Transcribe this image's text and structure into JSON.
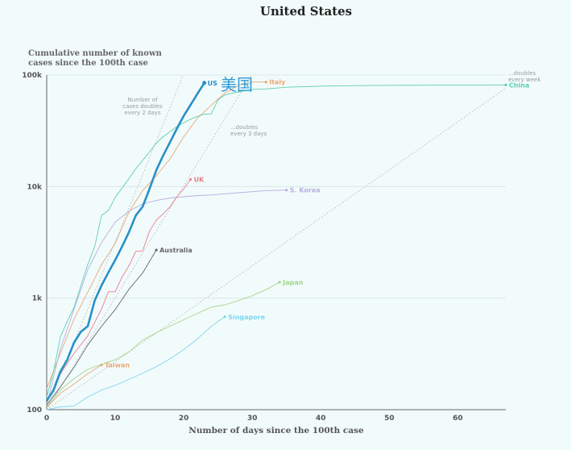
{
  "chart_data": {
    "type": "line",
    "title": "United States",
    "ylabel_line1": "Cumulative number of known",
    "ylabel_line2": "cases since the 100th case",
    "xlabel": "Number of days since the 100th case",
    "x_ticks": [
      0,
      10,
      20,
      30,
      40,
      50,
      60
    ],
    "y_ticks": [
      {
        "value": 100,
        "label": "100"
      },
      {
        "value": 1000,
        "label": "1k"
      },
      {
        "value": 10000,
        "label": "10k"
      },
      {
        "value": 100000,
        "label": "100k"
      }
    ],
    "xlim": [
      0,
      67
    ],
    "ylim": [
      100,
      100000
    ],
    "y_scale": "log",
    "grid": true,
    "reference_lines": [
      {
        "label_lines": [
          "Number of",
          "cases doubles",
          "every 2 days"
        ],
        "doubling_days": 2
      },
      {
        "label_lines": [
          "...doubles",
          "every 3 days"
        ],
        "doubling_days": 3
      },
      {
        "label_lines": [
          "...doubles",
          "every week"
        ],
        "doubling_days": 7
      }
    ],
    "series": [
      {
        "name": "US",
        "color": "#2a8fc7",
        "highlight": true,
        "points": [
          [
            0,
            120
          ],
          [
            1,
            150
          ],
          [
            2,
            220
          ],
          [
            3,
            280
          ],
          [
            4,
            400
          ],
          [
            5,
            500
          ],
          [
            6,
            560
          ],
          [
            7,
            950
          ],
          [
            8,
            1300
          ],
          [
            9,
            1700
          ],
          [
            10,
            2200
          ],
          [
            11,
            2900
          ],
          [
            12,
            3900
          ],
          [
            13,
            5500
          ],
          [
            14,
            6600
          ],
          [
            15,
            9500
          ],
          [
            16,
            14000
          ],
          [
            17,
            19000
          ],
          [
            18,
            25000
          ],
          [
            19,
            33000
          ],
          [
            20,
            43000
          ],
          [
            21,
            54000
          ],
          [
            22,
            68000
          ],
          [
            23,
            85000
          ]
        ]
      },
      {
        "name": "Italy",
        "color": "#e8a878",
        "points": [
          [
            0,
            155
          ],
          [
            2,
            320
          ],
          [
            4,
            650
          ],
          [
            6,
            1130
          ],
          [
            8,
            2000
          ],
          [
            10,
            3100
          ],
          [
            12,
            5900
          ],
          [
            14,
            9200
          ],
          [
            16,
            12500
          ],
          [
            18,
            17700
          ],
          [
            20,
            27900
          ],
          [
            22,
            41000
          ],
          [
            24,
            53500
          ],
          [
            26,
            69000
          ],
          [
            28,
            80500
          ],
          [
            30,
            86500
          ],
          [
            32,
            86500
          ]
        ]
      },
      {
        "name": "China",
        "color": "#5ccfb3",
        "points": [
          [
            0,
            130
          ],
          [
            1,
            220
          ],
          [
            2,
            450
          ],
          [
            3,
            620
          ],
          [
            4,
            830
          ],
          [
            5,
            1300
          ],
          [
            6,
            2000
          ],
          [
            7,
            2900
          ],
          [
            8,
            5500
          ],
          [
            9,
            6100
          ],
          [
            10,
            8000
          ],
          [
            11,
            9700
          ],
          [
            12,
            11800
          ],
          [
            13,
            14400
          ],
          [
            14,
            17200
          ],
          [
            15,
            20400
          ],
          [
            16,
            24500
          ],
          [
            17,
            28000
          ],
          [
            18,
            31000
          ],
          [
            19,
            34500
          ],
          [
            20,
            37200
          ],
          [
            21,
            40200
          ],
          [
            22,
            42600
          ],
          [
            23,
            44600
          ],
          [
            24,
            44700
          ],
          [
            25,
            59800
          ],
          [
            26,
            66400
          ],
          [
            27,
            68500
          ],
          [
            28,
            70500
          ],
          [
            29,
            72400
          ],
          [
            30,
            74200
          ],
          [
            32,
            75000
          ],
          [
            35,
            77700
          ],
          [
            40,
            79500
          ],
          [
            45,
            80300
          ],
          [
            50,
            80800
          ],
          [
            55,
            81000
          ],
          [
            60,
            81100
          ],
          [
            67,
            81500
          ]
        ]
      },
      {
        "name": "S. Korea",
        "color": "#b5aee0",
        "points": [
          [
            0,
            110
          ],
          [
            2,
            350
          ],
          [
            4,
            800
          ],
          [
            6,
            1800
          ],
          [
            8,
            3150
          ],
          [
            10,
            4800
          ],
          [
            12,
            6000
          ],
          [
            14,
            7000
          ],
          [
            16,
            7500
          ],
          [
            18,
            7900
          ],
          [
            20,
            8100
          ],
          [
            22,
            8300
          ],
          [
            24,
            8400
          ],
          [
            26,
            8600
          ],
          [
            28,
            8800
          ],
          [
            30,
            9000
          ],
          [
            32,
            9200
          ],
          [
            35,
            9300
          ]
        ]
      },
      {
        "name": "UK",
        "color": "#e87f8a",
        "points": [
          [
            0,
            115
          ],
          [
            2,
            210
          ],
          [
            4,
            320
          ],
          [
            6,
            460
          ],
          [
            8,
            800
          ],
          [
            9,
            1140
          ],
          [
            10,
            1140
          ],
          [
            11,
            1550
          ],
          [
            12,
            1950
          ],
          [
            13,
            2630
          ],
          [
            14,
            2650
          ],
          [
            15,
            3980
          ],
          [
            16,
            5000
          ],
          [
            17,
            5700
          ],
          [
            18,
            6600
          ],
          [
            19,
            8100
          ],
          [
            20,
            9500
          ],
          [
            21,
            11600
          ]
        ]
      },
      {
        "name": "Australia",
        "color": "#666666",
        "points": [
          [
            0,
            110
          ],
          [
            2,
            160
          ],
          [
            4,
            240
          ],
          [
            6,
            380
          ],
          [
            8,
            560
          ],
          [
            10,
            790
          ],
          [
            12,
            1200
          ],
          [
            14,
            1680
          ],
          [
            16,
            2700
          ]
        ]
      },
      {
        "name": "Japan",
        "color": "#a3d68c",
        "points": [
          [
            0,
            105
          ],
          [
            2,
            150
          ],
          [
            4,
            190
          ],
          [
            6,
            230
          ],
          [
            8,
            255
          ],
          [
            10,
            280
          ],
          [
            12,
            330
          ],
          [
            14,
            420
          ],
          [
            16,
            490
          ],
          [
            18,
            560
          ],
          [
            20,
            640
          ],
          [
            22,
            730
          ],
          [
            24,
            830
          ],
          [
            26,
            870
          ],
          [
            28,
            950
          ],
          [
            30,
            1050
          ],
          [
            32,
            1190
          ],
          [
            34,
            1390
          ]
        ]
      },
      {
        "name": "Taiwan",
        "color": "#e8a878",
        "points": [
          [
            0,
            105
          ],
          [
            2,
            140
          ],
          [
            4,
            170
          ],
          [
            6,
            210
          ],
          [
            8,
            252
          ]
        ]
      },
      {
        "name": "Singapore",
        "color": "#7ed8ee",
        "points": [
          [
            0,
            100
          ],
          [
            2,
            106
          ],
          [
            4,
            108
          ],
          [
            6,
            130
          ],
          [
            8,
            150
          ],
          [
            10,
            165
          ],
          [
            12,
            187
          ],
          [
            14,
            212
          ],
          [
            16,
            243
          ],
          [
            18,
            286
          ],
          [
            20,
            345
          ],
          [
            22,
            432
          ],
          [
            24,
            558
          ],
          [
            26,
            680
          ]
        ]
      }
    ],
    "annotations": {
      "us_chinese": "美国"
    }
  }
}
